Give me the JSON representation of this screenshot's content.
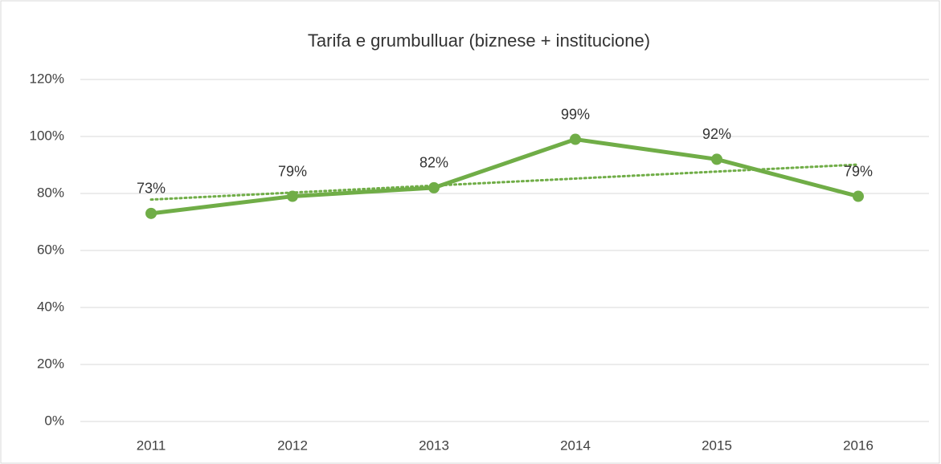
{
  "chart_data": {
    "type": "line",
    "title": "Tarifa e grumbulluar (biznese + institucione)",
    "categories": [
      "2011",
      "2012",
      "2013",
      "2014",
      "2015",
      "2016"
    ],
    "series": [
      {
        "name": "Tarifa e grumbulluar",
        "color": "#70ad47",
        "values": [
          73,
          79,
          82,
          99,
          92,
          79
        ],
        "value_labels": [
          "73%",
          "79%",
          "82%",
          "99%",
          "92%",
          "79%"
        ]
      }
    ],
    "ylim": [
      0,
      120
    ],
    "yticks": [
      {
        "value": 0,
        "label": "0%"
      },
      {
        "value": 20,
        "label": "20%"
      },
      {
        "value": 40,
        "label": "40%"
      },
      {
        "value": 60,
        "label": "60%"
      },
      {
        "value": 80,
        "label": "80%"
      },
      {
        "value": 100,
        "label": "100%"
      },
      {
        "value": 120,
        "label": "120%"
      }
    ],
    "grid": true,
    "trendline": "linear"
  }
}
